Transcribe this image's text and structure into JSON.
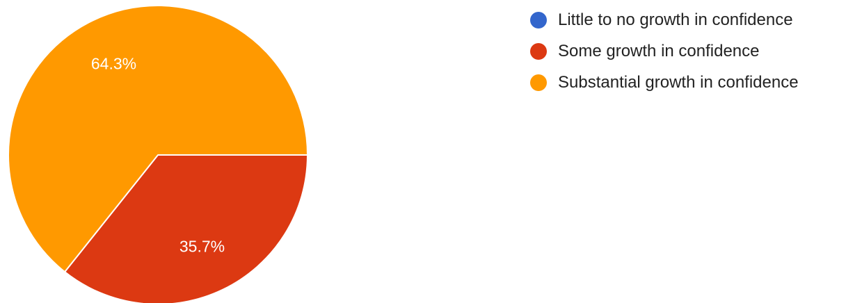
{
  "chart_data": {
    "type": "pie",
    "categories": [
      "Little to no growth in confidence",
      "Some growth in confidence",
      "Substantial growth in confidence"
    ],
    "values": [
      0,
      35.7,
      64.3
    ],
    "data_labels": [
      "",
      "35.7%",
      "64.3%"
    ],
    "colors": [
      "#3366cc",
      "#dc3912",
      "#ff9900"
    ],
    "legend_position": "right",
    "start_angle_deg": 90,
    "direction": "clockwise"
  }
}
